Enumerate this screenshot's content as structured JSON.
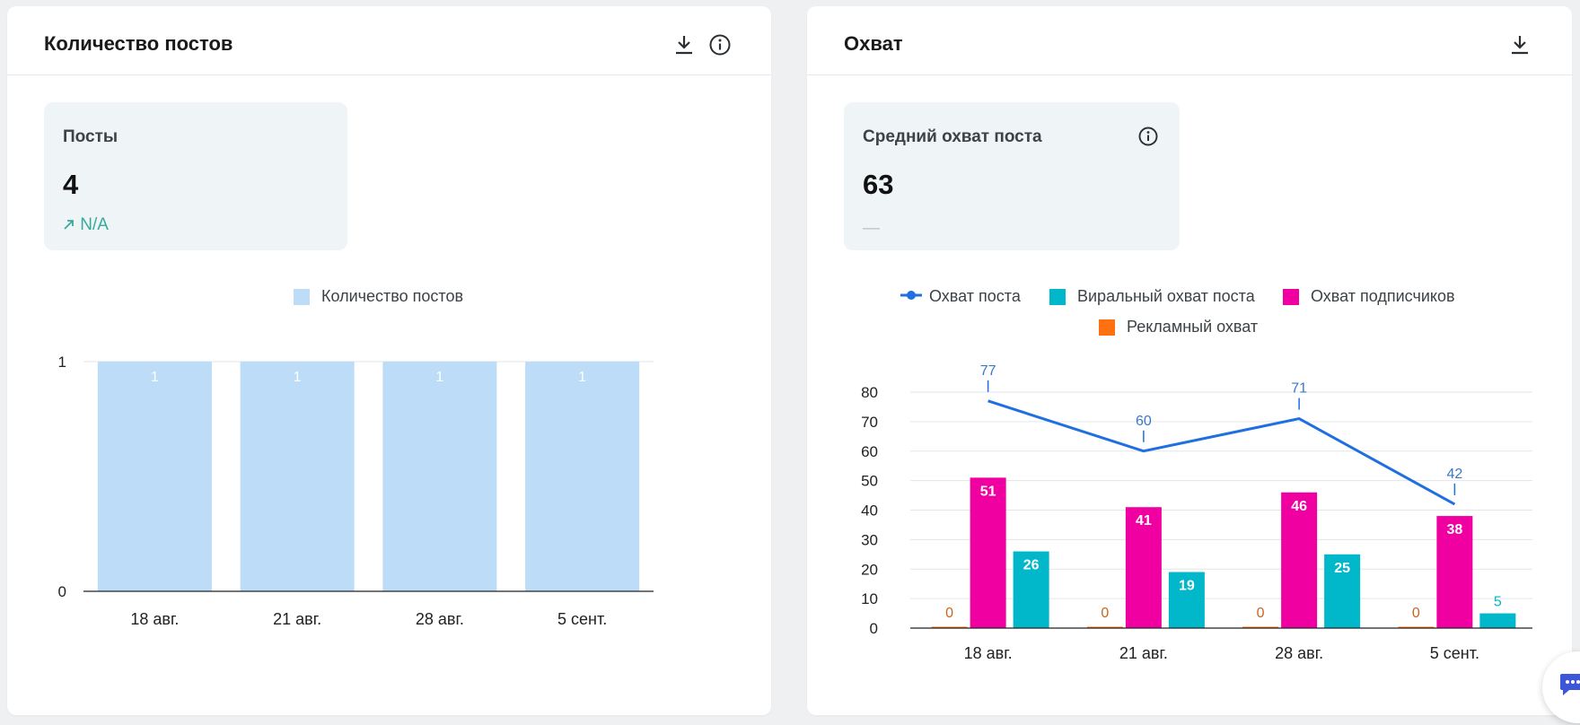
{
  "posts_card": {
    "title": "Количество постов",
    "kpi": {
      "label": "Посты",
      "value": "4",
      "delta": "N/A"
    },
    "legend": "Количество постов"
  },
  "reach_card": {
    "title": "Охват",
    "kpi": {
      "label": "Средний охват поста",
      "value": "63",
      "delta": "—"
    },
    "legend": [
      "Охват поста",
      "Виральный охват поста",
      "Охват подписчиков",
      "Рекламный охват"
    ]
  },
  "colors": {
    "bar_posts": "#bcdcf7",
    "line_reach": "#1f6fe0",
    "viral": "#00b8c9",
    "subscribers": "#f000a0",
    "ads": "#ff7010",
    "delta_positive": "#3aa99a"
  },
  "icons": [
    "download-icon",
    "info-icon",
    "trend-up-icon",
    "chat-icon"
  ],
  "chart_data": [
    {
      "type": "bar",
      "categories": [
        "18 авг.",
        "21 авг.",
        "28 авг.",
        "5 сент."
      ],
      "series": [
        {
          "name": "Количество постов",
          "values": [
            1,
            1,
            1,
            1
          ]
        }
      ],
      "yticks": [
        "0",
        "1"
      ],
      "ylim": [
        0,
        1
      ],
      "legend_position": "top"
    },
    {
      "type": "bar",
      "categories": [
        "18 авг.",
        "21 авг.",
        "28 авг.",
        "5 сент."
      ],
      "series": [
        {
          "name": "Охват поста",
          "type": "line",
          "values": [
            77,
            60,
            71,
            42
          ]
        },
        {
          "name": "Рекламный охват",
          "values": [
            0,
            0,
            0,
            0
          ]
        },
        {
          "name": "Охват подписчиков",
          "values": [
            51,
            41,
            46,
            38
          ]
        },
        {
          "name": "Виральный охват поста",
          "values": [
            26,
            19,
            25,
            5
          ]
        }
      ],
      "yticks": [
        "0",
        "10",
        "20",
        "30",
        "40",
        "50",
        "60",
        "70",
        "80"
      ],
      "ylim": [
        0,
        80
      ],
      "legend_position": "top"
    }
  ]
}
